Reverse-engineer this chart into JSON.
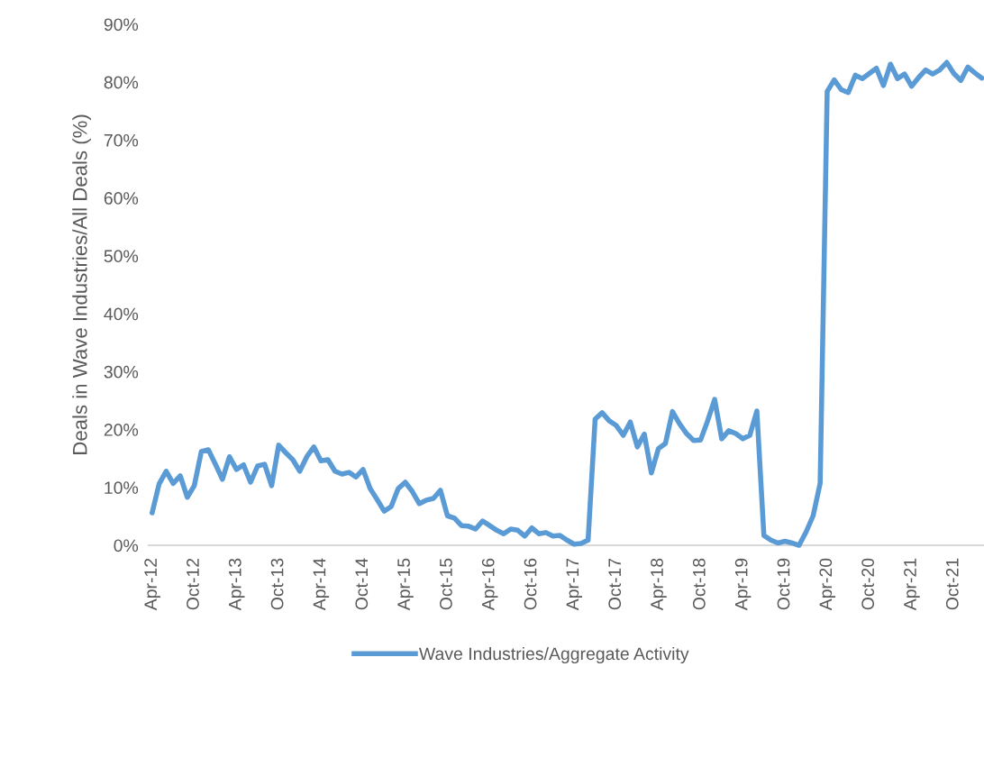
{
  "chart_data": {
    "type": "line",
    "ylabel": "Deals in Wave Industries/All Deals (%)",
    "categories": [
      "Apr-12",
      null,
      null,
      null,
      null,
      null,
      "Oct-12",
      null,
      null,
      null,
      null,
      null,
      "Apr-13",
      null,
      null,
      null,
      null,
      null,
      "Oct-13",
      null,
      null,
      null,
      null,
      null,
      "Apr-14",
      null,
      null,
      null,
      null,
      null,
      "Oct-14",
      null,
      null,
      null,
      null,
      null,
      "Apr-15",
      null,
      null,
      null,
      null,
      null,
      "Oct-15",
      null,
      null,
      null,
      null,
      null,
      "Apr-16",
      null,
      null,
      null,
      null,
      null,
      "Oct-16",
      null,
      null,
      null,
      null,
      null,
      "Apr-17",
      null,
      null,
      null,
      null,
      null,
      "Oct-17",
      null,
      null,
      null,
      null,
      null,
      "Apr-18",
      null,
      null,
      null,
      null,
      null,
      "Oct-18",
      null,
      null,
      null,
      null,
      null,
      "Apr-19",
      null,
      null,
      null,
      null,
      null,
      "Oct-19",
      null,
      null,
      null,
      null,
      null,
      "Apr-20",
      null,
      null,
      null,
      null,
      null,
      "Oct-20",
      null,
      null,
      null,
      null,
      null,
      "Apr-21",
      null,
      null,
      null,
      null,
      null,
      "Oct-21",
      null,
      null,
      null,
      null
    ],
    "series": [
      {
        "name": "Wave Industries/Aggregate Activity",
        "color": "#5b9bd5",
        "values": [
          5.6,
          10.6,
          12.8,
          10.7,
          12.0,
          8.3,
          10.3,
          16.2,
          16.5,
          14.0,
          11.4,
          15.3,
          13.1,
          13.9,
          10.9,
          13.7,
          14.0,
          10.3,
          17.3,
          16.0,
          14.8,
          12.8,
          15.3,
          17.0,
          14.6,
          14.8,
          12.8,
          12.3,
          12.6,
          11.8,
          13.1,
          9.8,
          7.9,
          5.9,
          6.7,
          9.8,
          10.9,
          9.3,
          7.2,
          7.8,
          8.1,
          9.5,
          5.1,
          4.7,
          3.4,
          3.3,
          2.8,
          4.2,
          3.4,
          2.6,
          2.0,
          2.8,
          2.6,
          1.6,
          3.0,
          2.0,
          2.2,
          1.6,
          1.7,
          0.9,
          0.2,
          0.3,
          0.9,
          21.8,
          22.9,
          21.5,
          20.7,
          19.0,
          21.3,
          17.0,
          19.2,
          12.5,
          16.7,
          17.6,
          23.1,
          21.0,
          19.3,
          18.1,
          18.2,
          21.5,
          25.2,
          18.4,
          19.8,
          19.3,
          18.4,
          19.0,
          23.2,
          1.7,
          0.9,
          0.4,
          0.7,
          0.4,
          0.0,
          2.3,
          5.1,
          10.7,
          78.4,
          80.4,
          78.7,
          78.2,
          81.2,
          80.6,
          81.5,
          82.4,
          79.4,
          83.1,
          80.6,
          81.4,
          79.3,
          80.8,
          82.1,
          81.4,
          82.1,
          83.4,
          81.5,
          80.3,
          82.6,
          81.6,
          80.7
        ]
      }
    ],
    "ylim": [
      0,
      90
    ],
    "yticks": [
      {
        "value": 0,
        "label": "0%"
      },
      {
        "value": 10,
        "label": "10%"
      },
      {
        "value": 20,
        "label": "20%"
      },
      {
        "value": 30,
        "label": "30%"
      },
      {
        "value": 40,
        "label": "40%"
      },
      {
        "value": 50,
        "label": "50%"
      },
      {
        "value": 60,
        "label": "60%"
      },
      {
        "value": 70,
        "label": "70%"
      },
      {
        "value": 80,
        "label": "80%"
      },
      {
        "value": 90,
        "label": "90%"
      }
    ],
    "grid": false,
    "legend": "bottom",
    "marker": "none",
    "line_style": "solid"
  }
}
